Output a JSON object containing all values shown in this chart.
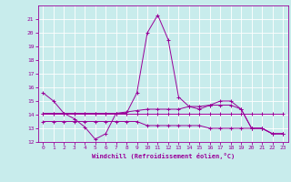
{
  "xlabel": "Windchill (Refroidissement éolien,°C)",
  "background_color": "#c8ecec",
  "line_color": "#990099",
  "grid_color": "#ffffff",
  "xlim": [
    -0.5,
    23.5
  ],
  "ylim": [
    12,
    22
  ],
  "yticks": [
    12,
    13,
    14,
    15,
    16,
    17,
    18,
    19,
    20,
    21
  ],
  "xticks": [
    0,
    1,
    2,
    3,
    4,
    5,
    6,
    7,
    8,
    9,
    10,
    11,
    12,
    13,
    14,
    15,
    16,
    17,
    18,
    19,
    20,
    21,
    22,
    23
  ],
  "series": [
    [
      15.6,
      15.0,
      14.1,
      13.7,
      13.1,
      12.2,
      12.6,
      14.1,
      14.1,
      15.6,
      20.0,
      21.3,
      19.5,
      15.3,
      14.6,
      14.4,
      14.7,
      15.0,
      15.0,
      14.4,
      13.0,
      13.0,
      12.6,
      12.6
    ],
    [
      14.1,
      14.1,
      14.1,
      14.1,
      14.1,
      14.1,
      14.1,
      14.1,
      14.2,
      14.3,
      14.4,
      14.4,
      14.4,
      14.4,
      14.6,
      14.6,
      14.7,
      14.7,
      14.7,
      14.4,
      13.0,
      13.0,
      12.6,
      12.6
    ],
    [
      14.1,
      14.1,
      14.1,
      14.1,
      14.1,
      14.1,
      14.1,
      14.1,
      14.1,
      14.1,
      14.1,
      14.1,
      14.1,
      14.1,
      14.1,
      14.1,
      14.1,
      14.1,
      14.1,
      14.1,
      14.1,
      14.1,
      14.1,
      14.1
    ],
    [
      13.5,
      13.5,
      13.5,
      13.5,
      13.5,
      13.5,
      13.5,
      13.5,
      13.5,
      13.5,
      13.2,
      13.2,
      13.2,
      13.2,
      13.2,
      13.2,
      13.0,
      13.0,
      13.0,
      13.0,
      13.0,
      13.0,
      12.6,
      12.6
    ]
  ]
}
